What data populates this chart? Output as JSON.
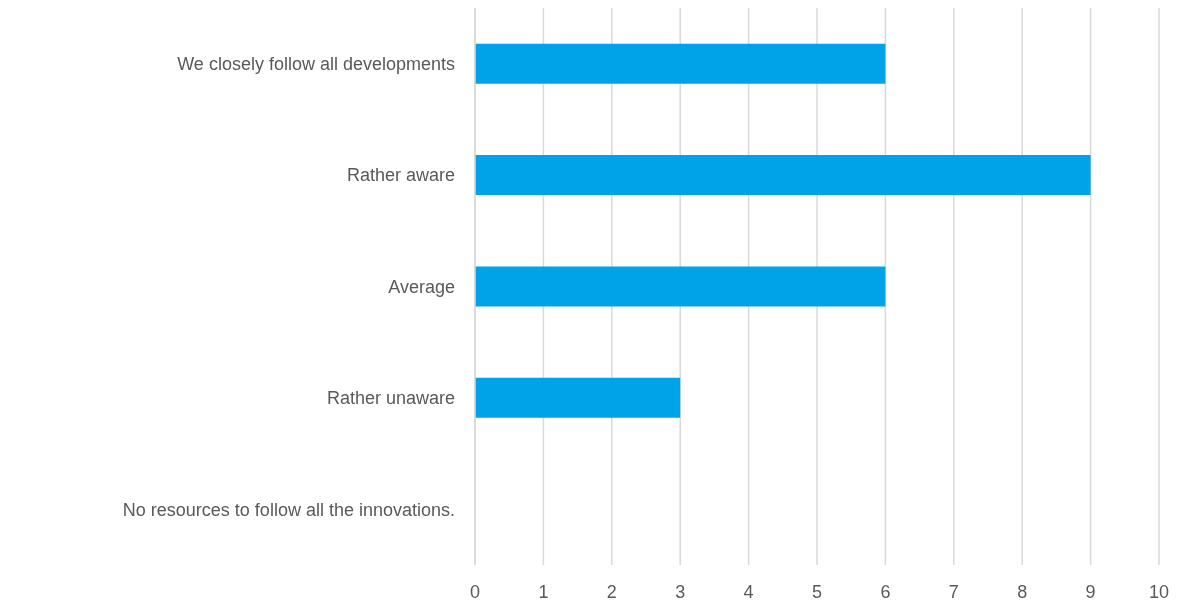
{
  "chart_data": {
    "type": "bar",
    "orientation": "horizontal",
    "categories": [
      "We closely follow all developments",
      "Rather aware",
      "Average",
      "Rather unaware",
      "No resources to follow all the innovations."
    ],
    "values": [
      6,
      9,
      6,
      3,
      0
    ],
    "color": "#00a2e8",
    "xlim": [
      0,
      10
    ],
    "xticks": [
      0,
      1,
      2,
      3,
      4,
      5,
      6,
      7,
      8,
      9,
      10
    ],
    "grid": "x"
  }
}
